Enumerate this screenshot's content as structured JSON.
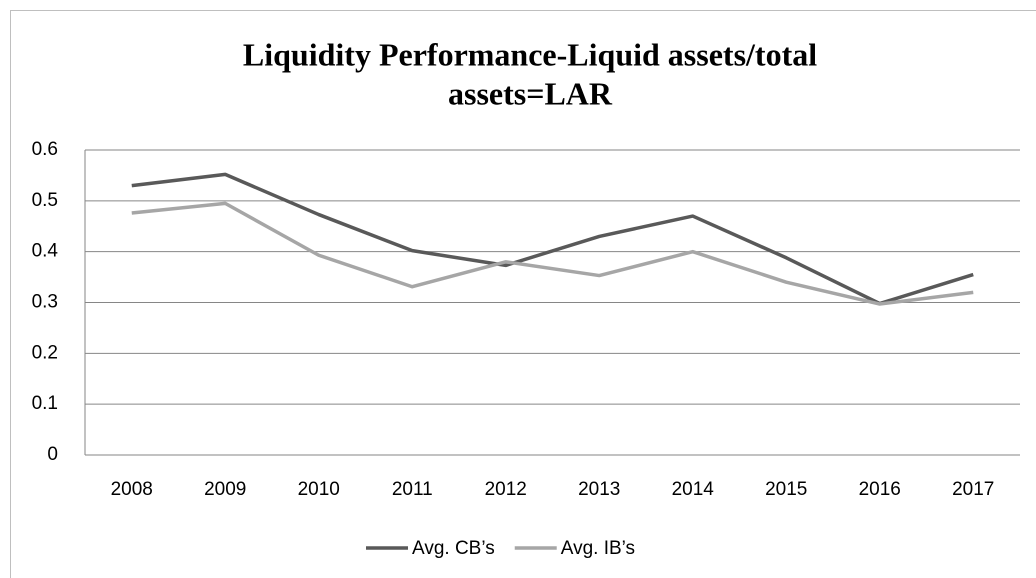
{
  "chart_data": {
    "type": "line",
    "title": [
      "Liquidity Performance-Liquid assets/total",
      "assets=LAR"
    ],
    "categories": [
      "2008",
      "2009",
      "2010",
      "2011",
      "2012",
      "2013",
      "2014",
      "2015",
      "2016",
      "2017"
    ],
    "series": [
      {
        "name": "Avg. CB’s",
        "color": "#595959",
        "values": [
          0.53,
          0.552,
          0.473,
          0.402,
          0.373,
          0.43,
          0.47,
          0.388,
          0.298,
          0.355
        ]
      },
      {
        "name": "Avg. IB’s",
        "color": "#a6a6a6",
        "values": [
          0.476,
          0.495,
          0.393,
          0.331,
          0.38,
          0.353,
          0.4,
          0.34,
          0.297,
          0.32
        ]
      }
    ],
    "ylim": [
      0,
      0.6
    ],
    "yticks": [
      0,
      0.1,
      0.2,
      0.3,
      0.4,
      0.5,
      0.6
    ],
    "grid": true,
    "legend": "bottom"
  }
}
